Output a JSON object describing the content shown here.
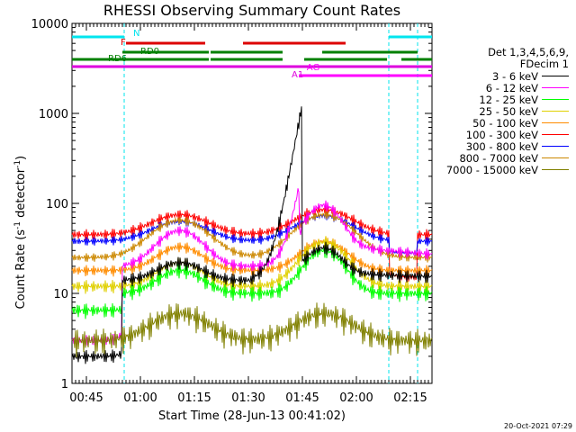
{
  "title": "RHESSI Observing Summary Count Rates",
  "ylabel": "Count Rate (s",
  "ylabel_sup": "-1",
  "ylabel_tail": " detector",
  "ylabel_sup2": "-1",
  "ylabel_end": ")",
  "xlabel": "Start Time (28-Jun-13 00:41:02)",
  "stamp": "20-Oct-2021 07:29",
  "legend_header": [
    "Det 1,3,4,5,6,9,",
    "FDecim 1"
  ],
  "chart_data": {
    "type": "line",
    "yscale": "log",
    "ylim": [
      1,
      10000
    ],
    "xlim_minutes": [
      0,
      100
    ],
    "x_ticks": [
      {
        "label": "00:45",
        "t": 4
      },
      {
        "label": "01:00",
        "t": 19
      },
      {
        "label": "01:15",
        "t": 34
      },
      {
        "label": "01:30",
        "t": 49
      },
      {
        "label": "01:45",
        "t": 64
      },
      {
        "label": "02:00",
        "t": 79
      },
      {
        "label": "02:15",
        "t": 94
      }
    ],
    "y_ticks": [
      {
        "label": "1",
        "v": 1
      },
      {
        "label": "10",
        "v": 10
      },
      {
        "label": "100",
        "v": 100
      },
      {
        "label": "1000",
        "v": 1000
      },
      {
        "label": "10000",
        "v": 10000
      }
    ],
    "series": [
      {
        "name": "3 - 6 keV",
        "color": "#000000"
      },
      {
        "name": "6 - 12 keV",
        "color": "#ff00ff"
      },
      {
        "name": "12 - 25 keV",
        "color": "#00ff00"
      },
      {
        "name": "25 - 50 keV",
        "color": "#e0d000"
      },
      {
        "name": "50 - 100 keV",
        "color": "#ff8c00"
      },
      {
        "name": "100 - 300 keV",
        "color": "#ff0000"
      },
      {
        "name": "300 - 800 keV",
        "color": "#0000ff"
      },
      {
        "name": "800 - 7000 keV",
        "color": "#cc8800"
      },
      {
        "name": "7000 - 15000 keV",
        "color": "#808000"
      }
    ],
    "flag_bars": [
      {
        "label": "N",
        "color": "#00e5ee",
        "segments": [
          [
            0,
            14.5
          ],
          [
            88,
            100
          ]
        ]
      },
      {
        "label": "F",
        "color": "#dd0000",
        "segments": [
          [
            15,
            37
          ],
          [
            47.5,
            76
          ]
        ]
      },
      {
        "label": "RD0",
        "color": "#008000",
        "segments": [
          [
            14,
            38
          ],
          [
            38.5,
            58.5
          ],
          [
            69.5,
            96
          ]
        ]
      },
      {
        "label": "RD6",
        "color": "#008000",
        "segments": [
          [
            0,
            14
          ],
          [
            14,
            38
          ],
          [
            38.5,
            58.5
          ],
          [
            64.5,
            87.5
          ],
          [
            91.5,
            100
          ]
        ]
      },
      {
        "label": "A1",
        "color": "#dd00dd",
        "segments": [
          [
            0,
            100
          ]
        ]
      },
      {
        "label": "AG",
        "color": "#ff00ff",
        "segments": [
          [
            63,
            100
          ]
        ]
      }
    ]
  }
}
